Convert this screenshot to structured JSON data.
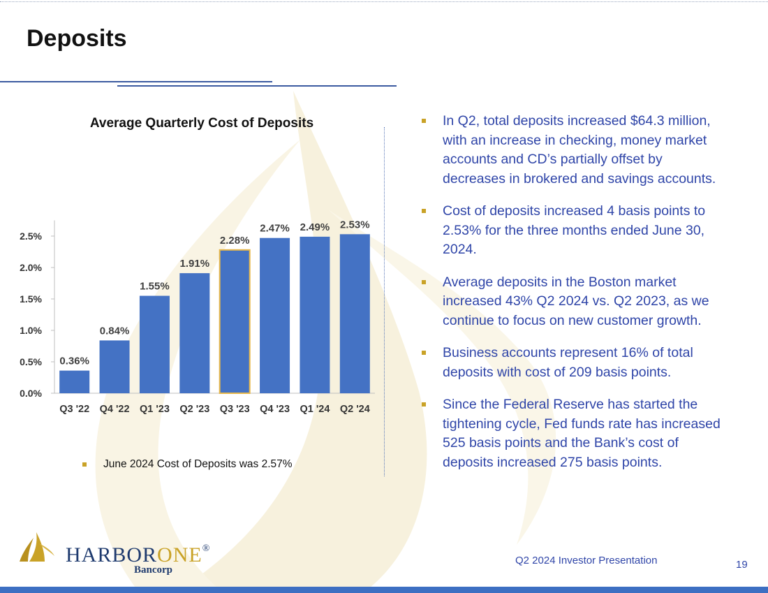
{
  "slide": {
    "title": "Deposits",
    "page_number": "19",
    "footer": "Q2 2024 Investor Presentation"
  },
  "chart_note": "June 2024 Cost of Deposits was 2.57%",
  "bullets": [
    "In Q2, total deposits increased $64.3 million, with an increase in checking, money market accounts and CD’s partially offset by decreases in brokered and savings accounts.",
    "Cost of deposits increased 4 basis points to 2.53% for the three months ended June 30, 2024.",
    "Average deposits in the Boston market increased 43% Q2 2024 vs. Q2 2023, as we continue to focus on new customer growth.",
    "Business accounts represent 16% of total deposits with cost of 209 basis points.",
    "Since the Federal Reserve has started the tightening cycle, Fed funds rate has increased 525 basis points and the Bank’s cost of deposits increased 275 basis points."
  ],
  "logo": {
    "name_part1": "HARBOR",
    "name_part2": "ONE",
    "registered": "®",
    "sub": "Bancorp"
  },
  "colors": {
    "bar": "#4472c4",
    "highlight_bar_border": "#e8b84a",
    "text_blue": "#2f45a8",
    "bullet_gold": "#c9a227",
    "bottom_bar": "#3d6fc2"
  },
  "chart_data": {
    "type": "bar",
    "title": "Average Quarterly Cost of Deposits",
    "categories": [
      "Q3 '22",
      "Q4 '22",
      "Q1 '23",
      "Q2 '23",
      "Q3 '23",
      "Q4 '23",
      "Q1 '24",
      "Q2 '24"
    ],
    "values": [
      0.36,
      0.84,
      1.55,
      1.91,
      2.28,
      2.47,
      2.49,
      2.53
    ],
    "data_labels": [
      "0.36%",
      "0.84%",
      "1.55%",
      "1.91%",
      "2.28%",
      "2.47%",
      "2.49%",
      "2.53%"
    ],
    "y_ticks": [
      0,
      0.5,
      1.0,
      1.5,
      2.0,
      2.5
    ],
    "y_tick_labels": [
      "0.0%",
      "0.5%",
      "1.0%",
      "1.5%",
      "2.0%",
      "2.5%"
    ],
    "ylim": [
      0,
      2.75
    ],
    "highlighted_index": 4,
    "grid": false,
    "legend": "none"
  }
}
